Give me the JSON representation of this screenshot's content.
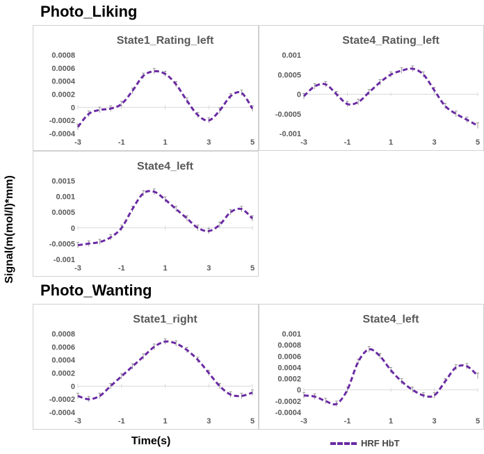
{
  "titles": {
    "liking": "Photo_Liking",
    "wanting": "Photo_Wanting"
  },
  "axis": {
    "ylabel": "Signal(m(mol/l)*mm)",
    "xlabel": "Time(s)"
  },
  "legend": {
    "label": "HRF HbT",
    "color": "#6a2aa3"
  },
  "chart_data": [
    {
      "type": "line",
      "title": "State1_Rating_left",
      "xlim": [
        -3,
        5
      ],
      "xticks": [
        "-3",
        "-1",
        "1",
        "3",
        "5"
      ],
      "ylim": [
        -0.0004,
        0.0008
      ],
      "yticks": [
        "0.0008",
        "0.0006",
        "0.0004",
        "0.0002",
        "0",
        "-0.0002",
        "-0.0004"
      ],
      "series": [
        {
          "name": "HRF HbT",
          "x": [
            -3,
            -2.5,
            -2,
            -1.5,
            -1,
            -0.5,
            0,
            0.5,
            1,
            1.5,
            2,
            2.5,
            3,
            3.5,
            4,
            4.5,
            5
          ],
          "y": [
            -0.0003,
            -0.0001,
            -4e-05,
            -2e-05,
            5e-05,
            0.00025,
            0.00048,
            0.00055,
            0.00051,
            0.00035,
            0.0001,
            -0.00012,
            -0.0002,
            -5e-05,
            0.00017,
            0.00022,
            -2e-05
          ]
        }
      ]
    },
    {
      "type": "line",
      "title": "State4_Rating_left",
      "xlim": [
        -3,
        5
      ],
      "xticks": [
        "-3",
        "-1",
        "1",
        "3",
        "5"
      ],
      "ylim": [
        -0.001,
        0.001
      ],
      "yticks": [
        "0.001",
        "0.0005",
        "0",
        "-0.0005",
        "-0.001"
      ],
      "series": [
        {
          "name": "HRF HbT",
          "x": [
            -3,
            -2.5,
            -2,
            -1.5,
            -1,
            -0.5,
            0,
            0.5,
            1,
            1.5,
            2,
            2.5,
            3,
            3.5,
            4,
            4.5,
            5
          ],
          "y": [
            -5e-05,
            0.0002,
            0.00025,
            0.0,
            -0.00025,
            -0.0002,
            5e-05,
            0.0003,
            0.0005,
            0.0006,
            0.00065,
            0.0005,
            0.0001,
            -0.0003,
            -0.0005,
            -0.00065,
            -0.0008
          ]
        }
      ]
    },
    {
      "type": "line",
      "title": "State4_left",
      "xlim": [
        -3,
        5
      ],
      "xticks": [
        "-3",
        "-1",
        "1",
        "3",
        "5"
      ],
      "ylim": [
        -0.001,
        0.0015
      ],
      "yticks": [
        "0.0015",
        "0.001",
        "0.0005",
        "0",
        "-0.0005",
        "-0.001"
      ],
      "series": [
        {
          "name": "HRF HbT",
          "x": [
            -3,
            -2.5,
            -2,
            -1.5,
            -1,
            -0.5,
            0,
            0.5,
            1,
            1.5,
            2,
            2.5,
            3,
            3.5,
            4,
            4.5,
            5
          ],
          "y": [
            -0.00055,
            -0.0005,
            -0.00045,
            -0.0003,
            0.0,
            0.0006,
            0.0011,
            0.00115,
            0.0009,
            0.0006,
            0.0003,
            0.0,
            -0.0001,
            0.0001,
            0.0005,
            0.0006,
            0.0003
          ]
        }
      ]
    },
    {
      "type": "line",
      "title": "State1_right",
      "xlim": [
        -3,
        5
      ],
      "xticks": [
        "-3",
        "-1",
        "1",
        "3",
        "5"
      ],
      "ylim": [
        -0.0004,
        0.0008
      ],
      "yticks": [
        "0.0008",
        "0.0006",
        "0.0004",
        "0.0002",
        "0",
        "-0.0002",
        "-0.0004"
      ],
      "series": [
        {
          "name": "HRF HbT",
          "x": [
            -3,
            -2.5,
            -2,
            -1.5,
            -1,
            -0.5,
            0,
            0.5,
            1,
            1.5,
            2,
            2.5,
            3,
            3.5,
            4,
            4.5,
            5
          ],
          "y": [
            -0.00015,
            -0.0002,
            -0.00015,
            0.0,
            0.00015,
            0.0003,
            0.00045,
            0.0006,
            0.00068,
            0.00065,
            0.00055,
            0.0004,
            0.0002,
            0.0,
            -0.00013,
            -0.00015,
            -0.0001
          ]
        }
      ]
    },
    {
      "type": "line",
      "title": "State4_left",
      "xlim": [
        -3,
        5
      ],
      "xticks": [
        "-3",
        "-1",
        "1",
        "3",
        "5"
      ],
      "ylim": [
        -0.0004,
        0.001
      ],
      "yticks": [
        "0.001",
        "0.0008",
        "0.0006",
        "0.0004",
        "0.0002",
        "0",
        "-0.0002",
        "-0.0004"
      ],
      "series": [
        {
          "name": "HRF HbT",
          "x": [
            -3,
            -2.5,
            -2,
            -1.5,
            -1,
            -0.5,
            0,
            0.5,
            1,
            1.5,
            2,
            2.5,
            3,
            3.5,
            4,
            4.5,
            5
          ],
          "y": [
            -0.0001,
            -0.00012,
            -0.0002,
            -0.00025,
            0.0,
            0.0005,
            0.00072,
            0.0006,
            0.00035,
            0.00015,
            0.0,
            -0.0001,
            -0.0001,
            0.00015,
            0.0004,
            0.00042,
            0.00025
          ]
        }
      ]
    }
  ]
}
